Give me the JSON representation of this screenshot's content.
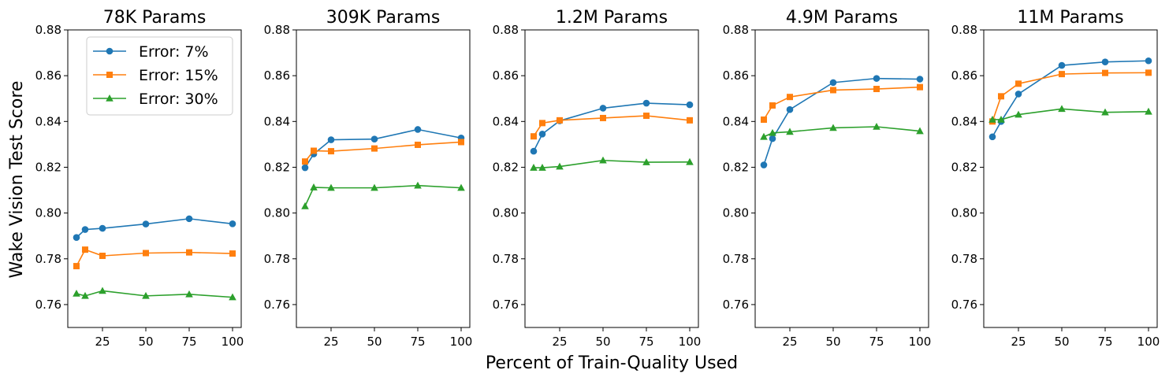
{
  "colors": {
    "s0": "#1f77b4",
    "s1": "#ff7f0e",
    "s2": "#2ca02c"
  },
  "labels": {
    "ylabel": "Wake Vision Test Score",
    "xlabel": "Percent of Train-Quality Used"
  },
  "legend": [
    {
      "name": "Error: 7%",
      "marker": "circle"
    },
    {
      "name": "Error: 15%",
      "marker": "square"
    },
    {
      "name": "Error: 30%",
      "marker": "triangle"
    }
  ],
  "chart_data": [
    {
      "type": "line",
      "title": "78K Params",
      "x": [
        10,
        15,
        25,
        50,
        75,
        100
      ],
      "xticks": [
        25,
        50,
        75,
        100
      ],
      "yticks": [
        0.76,
        0.78,
        0.8,
        0.82,
        0.84,
        0.86,
        0.88
      ],
      "ytick_labels": [
        "0.76",
        "0.78",
        "0.80",
        "0.82",
        "0.84",
        "0.86",
        "0.88"
      ],
      "xlim": [
        5,
        105
      ],
      "ylim": [
        0.75,
        0.88
      ],
      "series": [
        {
          "name": "Error: 7%",
          "values": [
            0.7893,
            0.7928,
            0.7933,
            0.7952,
            0.7975,
            0.7953
          ]
        },
        {
          "name": "Error: 15%",
          "values": [
            0.7768,
            0.784,
            0.7813,
            0.7825,
            0.7828,
            0.7823
          ]
        },
        {
          "name": "Error: 30%",
          "values": [
            0.7648,
            0.7638,
            0.766,
            0.7638,
            0.7645,
            0.7632
          ]
        }
      ]
    },
    {
      "type": "line",
      "title": "309K Params",
      "x": [
        10,
        15,
        25,
        50,
        75,
        100
      ],
      "xticks": [
        25,
        50,
        75,
        100
      ],
      "yticks": [
        0.76,
        0.78,
        0.8,
        0.82,
        0.84,
        0.86,
        0.88
      ],
      "ytick_labels": [
        "0.76",
        "0.78",
        "0.80",
        "0.82",
        "0.84",
        "0.86",
        "0.88"
      ],
      "xlim": [
        5,
        105
      ],
      "ylim": [
        0.75,
        0.88
      ],
      "series": [
        {
          "name": "Error: 7%",
          "values": [
            0.8198,
            0.8258,
            0.832,
            0.8323,
            0.8365,
            0.8328
          ]
        },
        {
          "name": "Error: 15%",
          "values": [
            0.8225,
            0.8272,
            0.827,
            0.8282,
            0.8298,
            0.831
          ]
        },
        {
          "name": "Error: 30%",
          "values": [
            0.803,
            0.8112,
            0.811,
            0.811,
            0.812,
            0.811
          ]
        }
      ]
    },
    {
      "type": "line",
      "title": "1.2M Params",
      "x": [
        10,
        15,
        25,
        50,
        75,
        100
      ],
      "xticks": [
        25,
        50,
        75,
        100
      ],
      "yticks": [
        0.76,
        0.78,
        0.8,
        0.82,
        0.84,
        0.86,
        0.88
      ],
      "ytick_labels": [
        "0.76",
        "0.78",
        "0.80",
        "0.82",
        "0.84",
        "0.86",
        "0.88"
      ],
      "xlim": [
        5,
        105
      ],
      "ylim": [
        0.75,
        0.88
      ],
      "series": [
        {
          "name": "Error: 7%",
          "values": [
            0.827,
            0.8345,
            0.8403,
            0.8458,
            0.848,
            0.8473
          ]
        },
        {
          "name": "Error: 15%",
          "values": [
            0.8335,
            0.8393,
            0.8405,
            0.8415,
            0.8425,
            0.8405
          ]
        },
        {
          "name": "Error: 30%",
          "values": [
            0.8198,
            0.8198,
            0.8203,
            0.823,
            0.8222,
            0.8223
          ]
        }
      ]
    },
    {
      "type": "line",
      "title": "4.9M Params",
      "x": [
        10,
        15,
        25,
        50,
        75,
        100
      ],
      "xticks": [
        25,
        50,
        75,
        100
      ],
      "yticks": [
        0.76,
        0.78,
        0.8,
        0.82,
        0.84,
        0.86,
        0.88
      ],
      "ytick_labels": [
        "0.76",
        "0.78",
        "0.80",
        "0.82",
        "0.84",
        "0.86",
        "0.88"
      ],
      "xlim": [
        5,
        105
      ],
      "ylim": [
        0.75,
        0.88
      ],
      "series": [
        {
          "name": "Error: 7%",
          "values": [
            0.821,
            0.8325,
            0.8452,
            0.857,
            0.8588,
            0.8585
          ]
        },
        {
          "name": "Error: 15%",
          "values": [
            0.8408,
            0.847,
            0.8507,
            0.8537,
            0.8542,
            0.855
          ]
        },
        {
          "name": "Error: 30%",
          "values": [
            0.8333,
            0.835,
            0.8355,
            0.8372,
            0.8377,
            0.8358
          ]
        }
      ]
    },
    {
      "type": "line",
      "title": "11M Params",
      "x": [
        10,
        15,
        25,
        50,
        75,
        100
      ],
      "xticks": [
        25,
        50,
        75,
        100
      ],
      "yticks": [
        0.76,
        0.78,
        0.8,
        0.82,
        0.84,
        0.86,
        0.88
      ],
      "ytick_labels": [
        "0.76",
        "0.78",
        "0.80",
        "0.82",
        "0.84",
        "0.86",
        "0.88"
      ],
      "xlim": [
        5,
        105
      ],
      "ylim": [
        0.75,
        0.88
      ],
      "series": [
        {
          "name": "Error: 7%",
          "values": [
            0.8333,
            0.84,
            0.852,
            0.8645,
            0.866,
            0.8665
          ]
        },
        {
          "name": "Error: 15%",
          "values": [
            0.84,
            0.851,
            0.8565,
            0.8607,
            0.8612,
            0.8613
          ]
        },
        {
          "name": "Error: 30%",
          "values": [
            0.8408,
            0.8408,
            0.843,
            0.8455,
            0.844,
            0.8443
          ]
        }
      ]
    }
  ]
}
